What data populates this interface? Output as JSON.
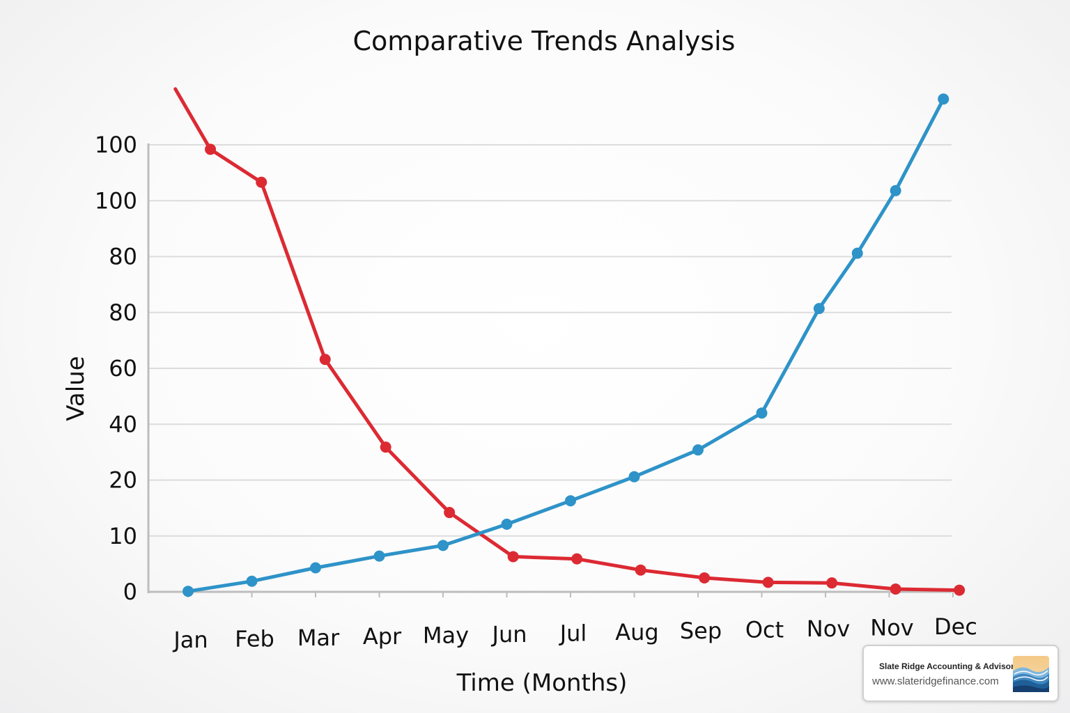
{
  "chart_data": {
    "type": "line",
    "title": "Comparative Trends Analysis",
    "xlabel": "Time (Months)",
    "ylabel": "Value",
    "categories": [
      "Jan",
      "Feb",
      "Mar",
      "Apr",
      "May",
      "Jun",
      "Jul",
      "Aug",
      "Sep",
      "Oct",
      "Nov",
      "Nov",
      "Dec"
    ],
    "yticks": [
      "0",
      "10",
      "20",
      "40",
      "60",
      "80",
      "80",
      "100",
      "100"
    ],
    "ylim": [
      0,
      8
    ],
    "grid": true,
    "legend": "none",
    "series": [
      {
        "color": "#dc2a33",
        "x": [
          -0.2,
          0.35,
          1.15,
          2.15,
          3.1,
          4.1,
          5.1,
          6.1,
          7.1,
          8.1,
          9.1,
          10.1,
          11.1,
          12.1
        ],
        "values": [
          9.0,
          7.92,
          7.33,
          4.16,
          2.59,
          1.42,
          0.63,
          0.59,
          0.39,
          0.25,
          0.17,
          0.16,
          0.05,
          0.03
        ]
      },
      {
        "color": "#2e93c8",
        "x": [
          0,
          1,
          2,
          3,
          4,
          5,
          6,
          7,
          8,
          9,
          9.9,
          10.5,
          11.1,
          11.85
        ],
        "values": [
          0.01,
          0.19,
          0.43,
          0.64,
          0.83,
          1.21,
          1.63,
          2.06,
          2.54,
          3.2,
          5.07,
          6.06,
          7.18,
          8.82
        ]
      }
    ]
  },
  "brand": {
    "name": "Slate Ridge Accounting & Advisory",
    "url": "www.slateridgefinance.com",
    "logo_icon": "mountain-waves-logo-icon"
  }
}
